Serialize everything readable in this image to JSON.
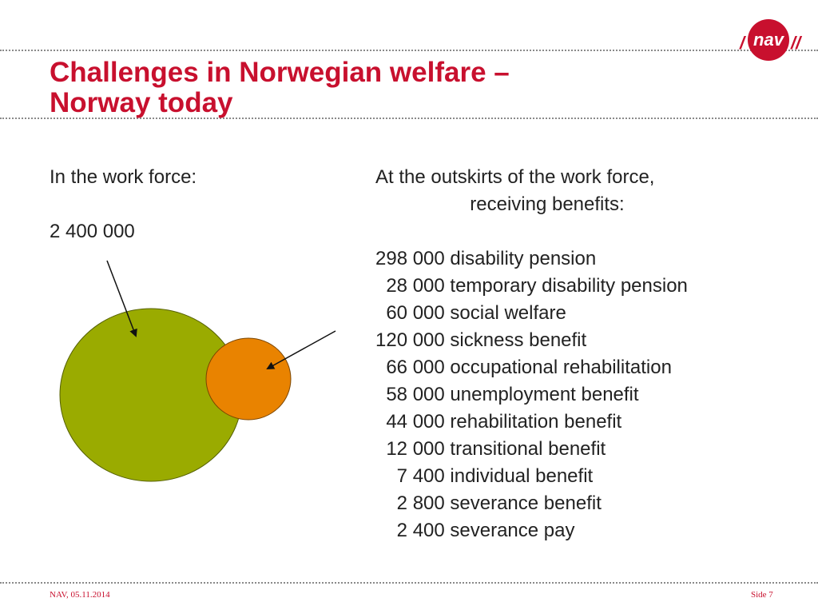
{
  "header": {
    "title_line1": "Challenges in Norwegian welfare –",
    "title_line2": "Norway today",
    "logo_text": "nav",
    "logo_slash_left": "/",
    "logo_slash_right": "//"
  },
  "left_column": {
    "label": "In the work force:",
    "value": "2 400 000"
  },
  "right_column": {
    "label_line1": "At the outskirts of the work force,",
    "label_line2": "receiving benefits:",
    "items": [
      "298 000 disability pension",
      "  28 000 temporary disability pension",
      "  60 000 social welfare",
      "120 000 sickness benefit",
      "  66 000 occupational rehabilitation",
      "  58 000 unemployment benefit",
      "  44 000 rehabilitation benefit",
      "  12 000 transitional benefit",
      "    7 400 individual benefit",
      "    2 800 severance benefit",
      "    2 400 severance pay"
    ]
  },
  "colors": {
    "accent": "#c8102e",
    "large_circle": "#9aab00",
    "small_circle": "#e98300"
  },
  "footer": {
    "left": "NAV, 05.11.2014",
    "right": "Side 7"
  }
}
